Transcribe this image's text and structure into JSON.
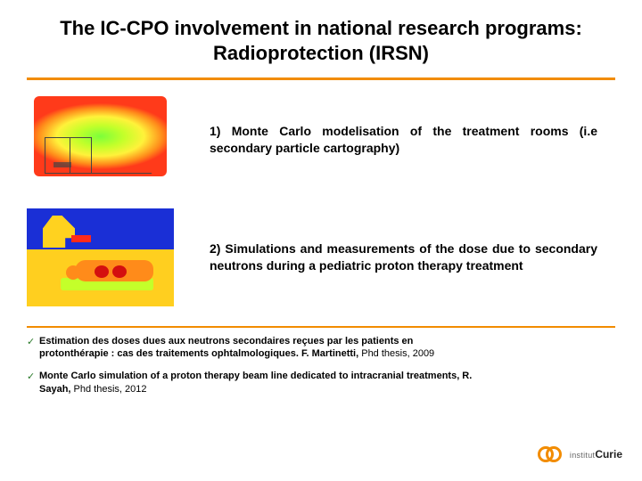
{
  "colors": {
    "accent": "#f28c00",
    "text": "#000000",
    "background": "#ffffff"
  },
  "title": "The IC-CPO involvement in national research programs: Radioprotection (IRSN)",
  "items": [
    {
      "desc": "1) Monte Carlo modelisation of the treatment rooms (i.e secondary particle cartography)"
    },
    {
      "desc": "2) Simulations and measurements of the dose due to secondary neutrons during a pediatric proton therapy treatment"
    }
  ],
  "refs": [
    {
      "bold": "Estimation des doses dues aux neutrons secondaires reçues par les patients en protonthérapie : cas des traitements ophtalmologiques. F. Martinetti,",
      "tail": " Phd thesis, 2009"
    },
    {
      "bold": "Monte Carlo simulation of a proton therapy beam line dedicated to intracranial treatments, R. Sayah,",
      "tail": " Phd thesis, 2012"
    }
  ],
  "logo": {
    "line1": "institut",
    "line2": "Curie"
  }
}
